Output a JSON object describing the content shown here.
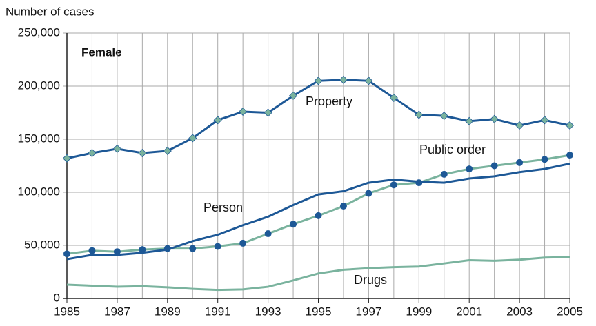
{
  "chart_data": {
    "type": "line",
    "y_label": "Number of cases",
    "annotation": "Female",
    "x": [
      1985,
      1986,
      1987,
      1988,
      1989,
      1990,
      1991,
      1992,
      1993,
      1994,
      1995,
      1996,
      1997,
      1998,
      1999,
      2000,
      2001,
      2002,
      2003,
      2004,
      2005
    ],
    "xlim": [
      1985,
      2005
    ],
    "xticks": [
      1985,
      1987,
      1989,
      1991,
      1993,
      1995,
      1997,
      1999,
      2001,
      2003,
      2005
    ],
    "ylim": [
      0,
      250000
    ],
    "yticks": [
      0,
      {
        "value": 50000,
        "label": "50,000"
      },
      {
        "value": 100000,
        "label": "100,000"
      },
      {
        "value": 150000,
        "label": "150,000"
      },
      {
        "value": 200000,
        "label": "200,000"
      },
      {
        "value": 250000,
        "label": "250,000"
      }
    ],
    "grid": true,
    "series": [
      {
        "name": "Property",
        "color": "#1d5896",
        "marker": "diamond",
        "marker_color": "#7ab39e",
        "values": [
          132000,
          137000,
          141000,
          137000,
          139000,
          151000,
          168000,
          176000,
          175000,
          191000,
          205000,
          206000,
          205000,
          189000,
          173000,
          172000,
          167000,
          169000,
          163000,
          168000,
          163000
        ]
      },
      {
        "name": "Public order",
        "color": "#7ab39e",
        "marker": "circle",
        "marker_color": "#1d5896",
        "values": [
          42000,
          45000,
          44000,
          46000,
          47000,
          47000,
          49000,
          52000,
          61000,
          70000,
          78000,
          87000,
          99000,
          107000,
          109000,
          117000,
          122000,
          125000,
          128000,
          131000,
          135000
        ]
      },
      {
        "name": "Person",
        "color": "#1d5896",
        "marker": "none",
        "marker_color": "#1d5896",
        "values": [
          37000,
          41000,
          41000,
          43000,
          46000,
          54000,
          60000,
          69000,
          77000,
          88000,
          98000,
          101000,
          109000,
          112000,
          110000,
          109000,
          113000,
          115000,
          119000,
          122000,
          127000
        ]
      },
      {
        "name": "Drugs",
        "color": "#7ab39e",
        "marker": "none",
        "marker_color": "#7ab39e",
        "values": [
          13000,
          12000,
          11000,
          11500,
          10500,
          9000,
          8000,
          8500,
          11000,
          17000,
          23500,
          27000,
          28500,
          29500,
          30000,
          33000,
          36000,
          35500,
          36500,
          38500,
          39000
        ]
      }
    ]
  }
}
